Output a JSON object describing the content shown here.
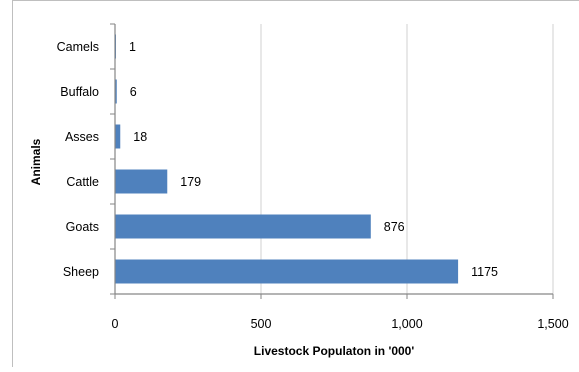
{
  "chart_data": {
    "type": "bar",
    "orientation": "horizontal",
    "categories": [
      "Sheep",
      "Goats",
      "Cattle",
      "Asses",
      "Buffalo",
      "Camels"
    ],
    "values": [
      1175,
      876,
      179,
      18,
      6,
      1
    ],
    "data_labels": [
      "1175",
      "876",
      "179",
      "18",
      "6",
      "1"
    ],
    "xlabel": "Livestock Populaton in '000'",
    "ylabel": "Animals",
    "xlim": [
      0,
      1500
    ],
    "x_ticks": [
      0,
      500,
      1000,
      1500
    ],
    "x_tick_labels": [
      "0",
      "500",
      "1,000",
      "1,500"
    ],
    "grid": "vertical",
    "legend": "none",
    "bar_color": "#4f81bd"
  }
}
